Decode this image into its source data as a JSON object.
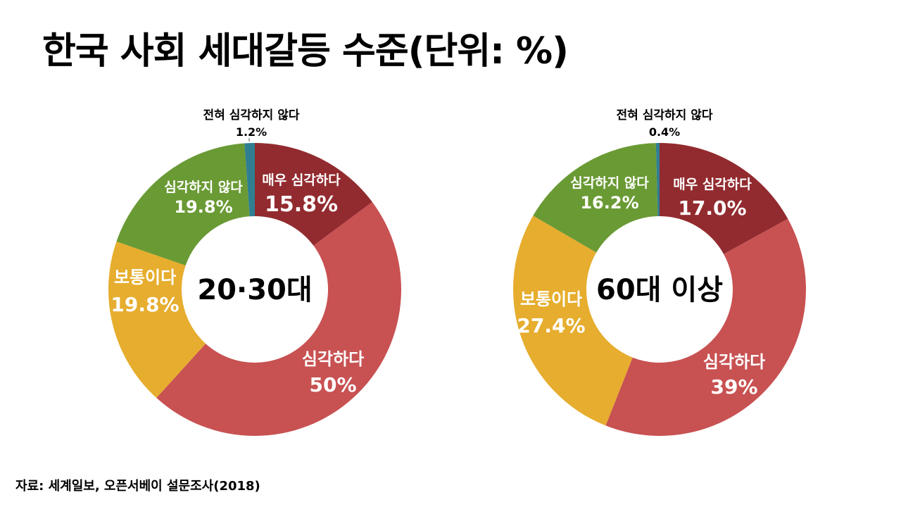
{
  "title": "한국 사회 세대갈등 수준(단위: %)",
  "source": "자료: 세계일보, 오픈서베이 설문조사(2018)",
  "colors": {
    "매우 심각하다": "#922b2f",
    "심각하다": "#c85152",
    "보통이다": "#e6ad2e",
    "심각하지 않다": "#6a9a34",
    "전혀 심각하지 않다": "#2f7f91"
  },
  "chart_data": [
    {
      "type": "pie",
      "donut": true,
      "center_label": "20·30대",
      "categories": [
        "매우 심각하다",
        "심각하다",
        "보통이다",
        "심각하지 않다",
        "전혀 심각하지 않다"
      ],
      "values": [
        15.8,
        50,
        19.8,
        19.8,
        1.2
      ],
      "value_labels": [
        "15.8%",
        "50%",
        "19.8%",
        "19.8%",
        "1.2%"
      ]
    },
    {
      "type": "pie",
      "donut": true,
      "center_label": "60대 이상",
      "categories": [
        "매우 심각하다",
        "심각하다",
        "보통이다",
        "심각하지 않다",
        "전혀 심각하지 않다"
      ],
      "values": [
        17.0,
        39,
        27.4,
        16.2,
        0.4
      ],
      "value_labels": [
        "17.0%",
        "39%",
        "27.4%",
        "16.2%",
        "0.4%"
      ]
    }
  ]
}
